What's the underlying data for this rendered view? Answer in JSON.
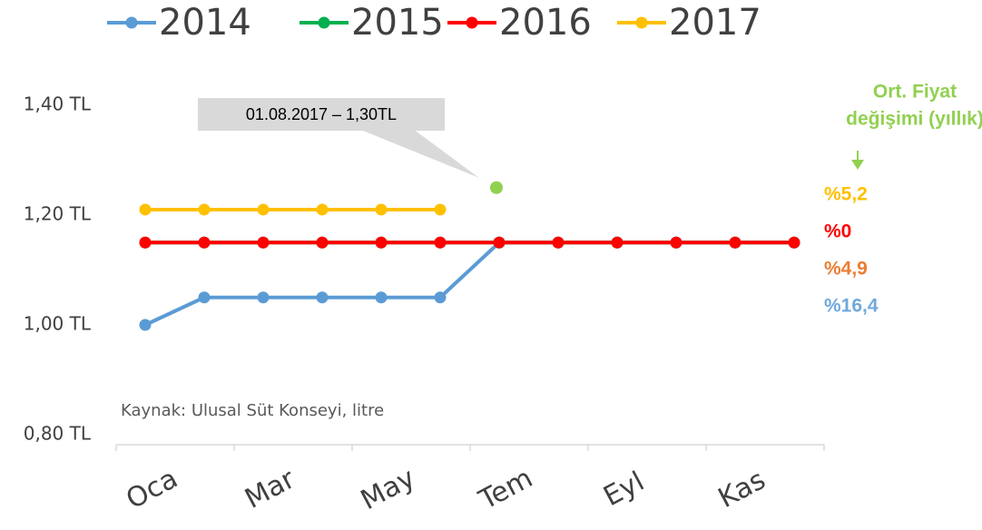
{
  "chart_data": {
    "type": "line",
    "categories": [
      "Oca",
      null,
      "Mar",
      null,
      "May",
      null,
      "Tem",
      null,
      "Eyl",
      null,
      "Kas",
      null
    ],
    "series": [
      {
        "name": "2014",
        "color": "#5b9bd5",
        "values": [
          1.0,
          1.05,
          1.05,
          1.05,
          1.05,
          1.05,
          1.15,
          1.15,
          1.15,
          1.15,
          1.15,
          1.15
        ]
      },
      {
        "name": "2015",
        "color": "#00b050",
        "values": [
          1.15,
          1.15,
          1.15,
          1.15,
          1.15,
          1.15,
          1.15,
          1.15,
          1.15,
          1.15,
          1.15,
          1.15
        ]
      },
      {
        "name": "2016",
        "color": "#ff0000",
        "values": [
          1.15,
          1.15,
          1.15,
          1.15,
          1.15,
          1.15,
          1.15,
          1.15,
          1.15,
          1.15,
          1.15,
          1.15
        ]
      },
      {
        "name": "2017",
        "color": "#ffc000",
        "values": [
          1.21,
          1.21,
          1.21,
          1.21,
          1.21,
          1.21,
          null,
          null,
          null,
          null,
          null,
          null
        ]
      }
    ],
    "highlight": {
      "color": "#92d050",
      "values": [
        null,
        null,
        null,
        null,
        null,
        null,
        1.25,
        null,
        null,
        null,
        null,
        null
      ]
    },
    "ylim": [
      0.8,
      1.4
    ],
    "yticks": [
      {
        "value": 0.8,
        "label": "0,80 TL"
      },
      {
        "value": 1.0,
        "label": "1,00 TL"
      },
      {
        "value": 1.2,
        "label": "1,20 TL"
      },
      {
        "value": 1.4,
        "label": "1,40 TL"
      }
    ],
    "annotation": "01.08.2017 – 1,30TL",
    "source": "Kaynak: Ulusal Süt Konseyi, litre",
    "side_note": {
      "title": [
        "Ort. Fiyat",
        "değişimi (yıllık)"
      ],
      "color": "#92d050",
      "items": [
        {
          "text": "%5,2",
          "color": "#ffc000"
        },
        {
          "text": "%0",
          "color": "#ff0000"
        },
        {
          "text": "%4,9",
          "color": "#ed7d31"
        },
        {
          "text": "%16,4",
          "color": "#6fa8dc"
        }
      ]
    }
  }
}
